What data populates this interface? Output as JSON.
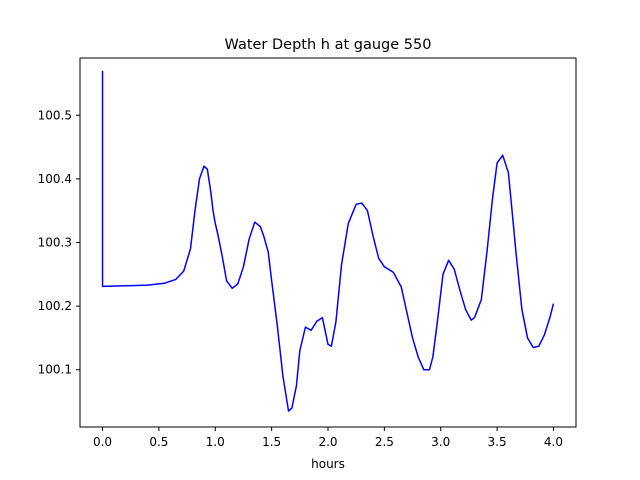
{
  "chart_data": {
    "type": "line",
    "title": "Water Depth h at gauge 550",
    "xlabel": "hours",
    "ylabel": "",
    "xlim": [
      -0.2,
      4.2
    ],
    "ylim": [
      100.01,
      100.59
    ],
    "grid": false,
    "x_ticks": [
      0.0,
      0.5,
      1.0,
      1.5,
      2.0,
      2.5,
      3.0,
      3.5,
      4.0
    ],
    "x_tick_labels": [
      "0.0",
      "0.5",
      "1.0",
      "1.5",
      "2.0",
      "2.5",
      "3.0",
      "3.5",
      "4.0"
    ],
    "y_ticks": [
      100.1,
      100.2,
      100.3,
      100.4,
      100.5
    ],
    "y_tick_labels": [
      "100.1",
      "100.2",
      "100.3",
      "100.4",
      "100.5"
    ],
    "series": [
      {
        "color": "#0000ff",
        "x": [
          0.0,
          0.0,
          0.0,
          0.2,
          0.4,
          0.55,
          0.65,
          0.72,
          0.78,
          0.82,
          0.86,
          0.9,
          0.93,
          0.96,
          0.98,
          1.0,
          1.02,
          1.06,
          1.1,
          1.15,
          1.2,
          1.25,
          1.3,
          1.35,
          1.4,
          1.43,
          1.47,
          1.5,
          1.55,
          1.6,
          1.65,
          1.68,
          1.72,
          1.75,
          1.8,
          1.85,
          1.9,
          1.95,
          2.0,
          2.03,
          2.07,
          2.12,
          2.18,
          2.25,
          2.3,
          2.35,
          2.4,
          2.45,
          2.5,
          2.58,
          2.65,
          2.7,
          2.75,
          2.8,
          2.85,
          2.9,
          2.93,
          2.97,
          3.02,
          3.07,
          3.12,
          3.17,
          3.22,
          3.27,
          3.3,
          3.36,
          3.41,
          3.46,
          3.5,
          3.55,
          3.6,
          3.63,
          3.67,
          3.72,
          3.77,
          3.82,
          3.87,
          3.92,
          3.97,
          4.0
        ],
        "y": [
          100.57,
          100.232,
          100.231,
          100.232,
          100.233,
          100.236,
          100.242,
          100.255,
          100.29,
          100.35,
          100.4,
          100.42,
          100.415,
          100.38,
          100.35,
          100.33,
          100.315,
          100.28,
          100.24,
          100.228,
          100.235,
          100.262,
          100.305,
          100.332,
          100.325,
          100.31,
          100.285,
          100.24,
          100.17,
          100.09,
          100.035,
          100.04,
          100.075,
          100.13,
          100.167,
          100.162,
          100.176,
          100.182,
          100.14,
          100.137,
          100.175,
          100.265,
          100.33,
          100.36,
          100.362,
          100.35,
          100.31,
          100.275,
          100.262,
          100.253,
          100.23,
          100.19,
          100.15,
          100.12,
          100.1,
          100.1,
          100.12,
          100.175,
          100.25,
          100.272,
          100.258,
          100.225,
          100.195,
          100.178,
          100.182,
          100.21,
          100.285,
          100.37,
          100.425,
          100.437,
          100.41,
          100.355,
          100.28,
          100.195,
          100.15,
          100.135,
          100.137,
          100.155,
          100.183,
          100.204
        ]
      }
    ]
  }
}
